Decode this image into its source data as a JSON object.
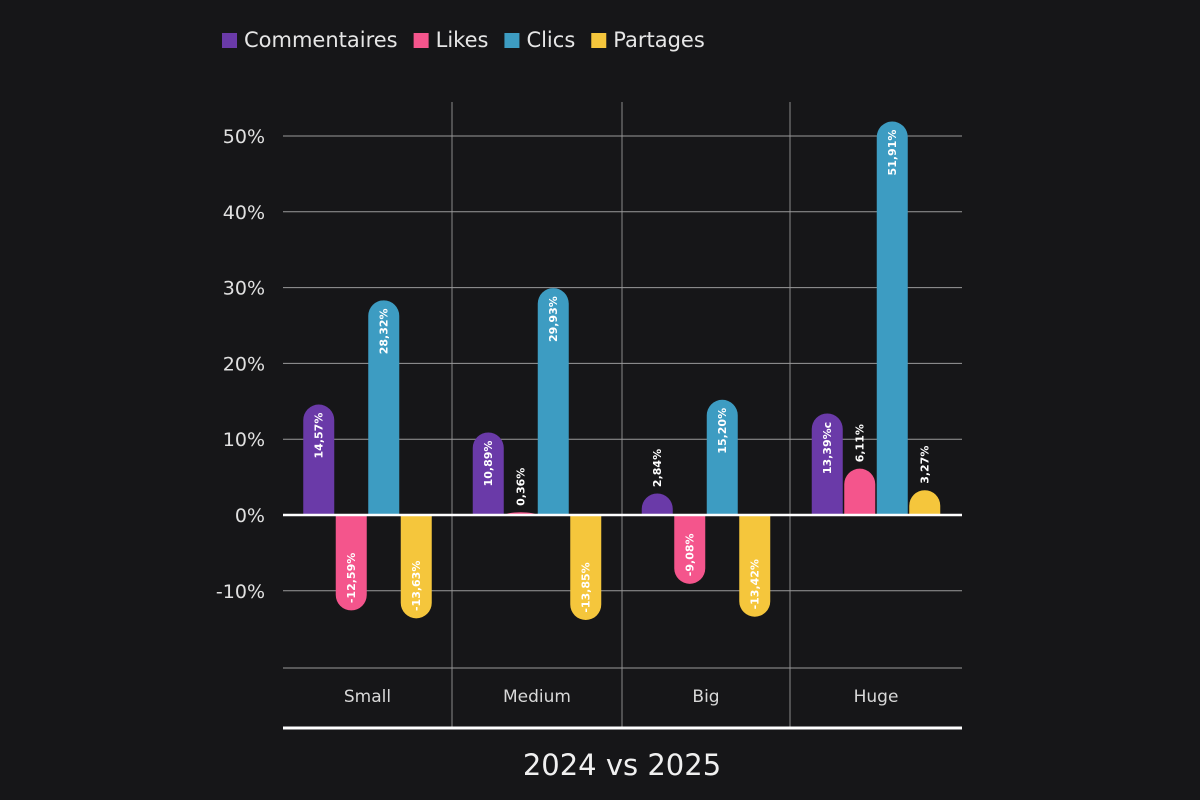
{
  "chart_data": {
    "type": "bar",
    "title": "2024 vs 2025",
    "categories": [
      "Small",
      "Medium",
      "Big",
      "Huge"
    ],
    "series": [
      {
        "name": "Commentaires",
        "color": "#6a3aa8",
        "values": [
          14.57,
          10.89,
          2.84,
          13.39
        ],
        "labels": [
          "14,57%",
          "10,89%",
          "2,84%",
          "13,39%c"
        ]
      },
      {
        "name": "Likes",
        "color": "#f4558c",
        "values": [
          -12.59,
          0.36,
          -9.08,
          6.11
        ],
        "labels": [
          "-12,59%",
          "0,36%",
          "-9,08%",
          "6,11%"
        ]
      },
      {
        "name": "Clics",
        "color": "#3d9cc2",
        "values": [
          28.32,
          29.93,
          15.2,
          51.91
        ],
        "labels": [
          "28,32%",
          "29,93%",
          "15,20%",
          "51,91%"
        ]
      },
      {
        "name": "Partages",
        "color": "#f5c63c",
        "values": [
          -13.63,
          -13.85,
          -13.42,
          3.27
        ],
        "labels": [
          "-13,63%",
          "-13,85%",
          "-13,42%",
          "3,27%"
        ]
      }
    ],
    "y_ticks": [
      "50%",
      "40%",
      "30%",
      "20%",
      "10%",
      "0%",
      "-10%"
    ],
    "y_tick_values": [
      50,
      40,
      30,
      20,
      10,
      0,
      -10
    ],
    "ylim": [
      -20,
      55
    ],
    "grid": true,
    "legend_position": "top-left"
  }
}
